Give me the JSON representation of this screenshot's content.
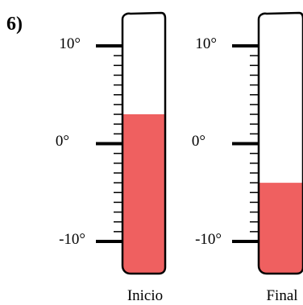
{
  "problem_number": "6)",
  "thermometers": [
    {
      "caption": "Inicio",
      "temperature": 3,
      "scale": {
        "min": -10,
        "max": 10,
        "step": 1
      },
      "labels": {
        "top": "10°",
        "middle": "0°",
        "bottom": "-10°"
      }
    },
    {
      "caption": "Final",
      "temperature": -4,
      "scale": {
        "min": -10,
        "max": 10,
        "step": 1
      },
      "labels": {
        "top": "10°",
        "middle": "0°",
        "bottom": "-10°"
      }
    }
  ],
  "colors": {
    "liquid": "#ef6060",
    "outline": "#000000"
  }
}
